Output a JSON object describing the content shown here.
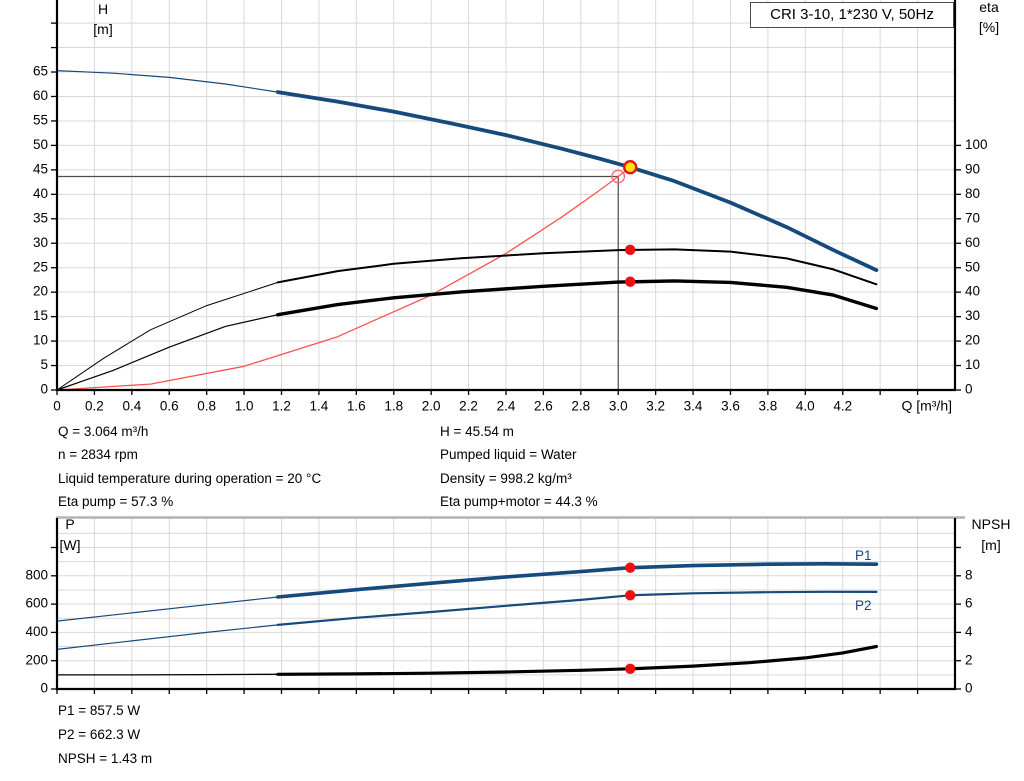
{
  "title_box": "CRI 3-10, 1*230 V, 50Hz",
  "annotations": {
    "left": [
      "Q = 3.064 m³/h",
      "n = 2834 rpm",
      "Liquid temperature during operation = 20 °C",
      "Eta pump = 57.3 %"
    ],
    "right": [
      "H = 45.54 m",
      "Pumped liquid = Water",
      "Density = 998.2 kg/m³",
      "Eta pump+motor = 44.3 %"
    ],
    "power": [
      "P1 = 857.5 W",
      "P2 = 662.3 W",
      "NPSH = 1.43 m"
    ]
  },
  "colors": {
    "curve_blue": "#174a7c",
    "curve_black": "#000000",
    "system_red": "#ff5252",
    "marker_red": "#f10e0e",
    "marker_yellow": "#ffe608",
    "marker_yellow_ring": "#e81313",
    "grid": "#d9d9d9",
    "axis": "#000000",
    "crosshair": "#4d4d4d",
    "panel_border": "#b3b3b3"
  },
  "chart_data": [
    {
      "type": "line",
      "title": "CRI 3-10, 1*230 V, 50Hz",
      "x_axis": {
        "label": "Q [m³/h]",
        "min": 0,
        "max": 4.8,
        "grid_step": 0.2,
        "grid_max": 4.6,
        "tick_step": 0.2,
        "tick_max": 4.6,
        "label_step": 0.2,
        "label_max": 4.2,
        "decimals": 1
      },
      "y_left": {
        "label": [
          "H",
          "[m]"
        ],
        "min": 0,
        "max": 80,
        "grid_step": 5,
        "grid_max": 75,
        "tick_step": 5,
        "tick_max": 75,
        "label_step": 5,
        "label_max": 65,
        "decimals": 0
      },
      "y_right": {
        "label": [
          "eta",
          "[%]"
        ],
        "min": 0,
        "max": 110,
        "tick_step": 10,
        "tick_max": 100,
        "label_step": 10,
        "label_max": 100,
        "decimals": 0
      },
      "crosshair": {
        "q": 3.0,
        "h": 43.65
      },
      "series": [
        {
          "name": "system-curve",
          "axis": "left",
          "color": "#ff5252",
          "width_thin": 1.3,
          "width": 1.3,
          "thin_until": 99,
          "points": [
            [
              0,
              0
            ],
            [
              0.5,
              1.2
            ],
            [
              1.0,
              4.85
            ],
            [
              1.5,
              10.9
            ],
            [
              2.0,
              19.4
            ],
            [
              2.4,
              27.9
            ],
            [
              2.7,
              35.4
            ],
            [
              2.9,
              40.8
            ],
            [
              3.0,
              43.65
            ],
            [
              3.064,
              45.5
            ]
          ]
        },
        {
          "name": "eta-pump-curve",
          "axis": "right",
          "color": "#000000",
          "width_thin": 1.0,
          "width": 2.0,
          "thin_until": 1.18,
          "points": [
            [
              0,
              0
            ],
            [
              0.25,
              13
            ],
            [
              0.5,
              24.6
            ],
            [
              0.8,
              34.5
            ],
            [
              1.18,
              44
            ],
            [
              1.5,
              48.6
            ],
            [
              1.8,
              51.6
            ],
            [
              2.16,
              53.9
            ],
            [
              2.6,
              55.9
            ],
            [
              3.0,
              57.2
            ],
            [
              3.3,
              57.5
            ],
            [
              3.6,
              56.6
            ],
            [
              3.9,
              53.8
            ],
            [
              4.15,
              49.3
            ],
            [
              4.38,
              43.2
            ]
          ]
        },
        {
          "name": "eta-pump-motor-curve",
          "axis": "right",
          "color": "#000000",
          "width_thin": 1.2,
          "width": 3.4,
          "thin_until": 1.18,
          "points": [
            [
              0,
              0
            ],
            [
              0.3,
              8
            ],
            [
              0.6,
              17.5
            ],
            [
              0.9,
              26
            ],
            [
              1.18,
              30.8
            ],
            [
              1.5,
              34.9
            ],
            [
              1.8,
              37.7
            ],
            [
              2.16,
              40.1
            ],
            [
              2.6,
              42.4
            ],
            [
              3.0,
              44.1
            ],
            [
              3.3,
              44.6
            ],
            [
              3.6,
              44
            ],
            [
              3.9,
              42
            ],
            [
              4.15,
              38.8
            ],
            [
              4.38,
              33.3
            ]
          ]
        },
        {
          "name": "head-curve",
          "axis": "left",
          "color": "#174a7c",
          "width_thin": 1.2,
          "width": 3.8,
          "thin_until": 1.18,
          "points": [
            [
              0,
              65.3
            ],
            [
              0.3,
              64.75
            ],
            [
              0.6,
              63.9
            ],
            [
              0.9,
              62.55
            ],
            [
              1.18,
              60.9
            ],
            [
              1.5,
              58.95
            ],
            [
              1.8,
              56.9
            ],
            [
              2.1,
              54.55
            ],
            [
              2.4,
              52.1
            ],
            [
              2.7,
              49.3
            ],
            [
              2.9,
              47.3
            ],
            [
              3.064,
              45.54
            ],
            [
              3.3,
              42.7
            ],
            [
              3.6,
              38.3
            ],
            [
              3.9,
              33.3
            ],
            [
              4.15,
              28.6
            ],
            [
              4.38,
              24.5
            ]
          ]
        }
      ],
      "markers": [
        {
          "name": "requested-duty-point",
          "type": "open-circle",
          "q": 3.0,
          "axis": "left",
          "v": 43.65
        },
        {
          "name": "operating-point",
          "type": "yellow-dot",
          "q": 3.064,
          "axis": "left",
          "v": 45.54
        },
        {
          "name": "eta-pump-point",
          "type": "red-dot",
          "q": 3.064,
          "axis": "right",
          "v": 57.3
        },
        {
          "name": "eta-pump-motor-point",
          "type": "red-dot",
          "q": 3.064,
          "axis": "right",
          "v": 44.3
        }
      ],
      "curve_labels": []
    },
    {
      "type": "line",
      "x_axis": {
        "label": "",
        "min": 0,
        "max": 4.8,
        "grid_step": 0.2,
        "grid_max": 4.6,
        "tick_step": 0.2,
        "tick_max": 4.6,
        "label_step": 0,
        "label_max": 0,
        "decimals": 1
      },
      "y_left": {
        "label": [
          "P",
          "[W]"
        ],
        "min": 0,
        "max": 1208,
        "grid_step": 100,
        "grid_max": 1100,
        "tick_step": 200,
        "tick_max": 1000,
        "label_step": 200,
        "label_max": 800,
        "decimals": 0
      },
      "y_right": {
        "label": [
          "NPSH",
          "[m]"
        ],
        "min": 0,
        "max": 12,
        "tick_step": 2,
        "tick_max": 10,
        "label_step": 2,
        "label_max": 8,
        "decimals": 0
      },
      "series": [
        {
          "name": "npsh-curve",
          "axis": "right",
          "color": "#000000",
          "width_thin": 1.3,
          "width": 3.2,
          "thin_until": 1.18,
          "points": [
            [
              0,
              1.0
            ],
            [
              0.4,
              1.0
            ],
            [
              0.8,
              1.02
            ],
            [
              1.18,
              1.04
            ],
            [
              1.6,
              1.07
            ],
            [
              2.0,
              1.12
            ],
            [
              2.4,
              1.2
            ],
            [
              2.8,
              1.32
            ],
            [
              3.064,
              1.43
            ],
            [
              3.4,
              1.62
            ],
            [
              3.7,
              1.86
            ],
            [
              4.0,
              2.2
            ],
            [
              4.2,
              2.55
            ],
            [
              4.38,
              3.0
            ]
          ]
        },
        {
          "name": "p2-curve",
          "axis": "left",
          "color": "#174a7c",
          "width_thin": 1.2,
          "width": 2.2,
          "thin_until": 1.18,
          "points": [
            [
              0,
              280
            ],
            [
              0.4,
              340
            ],
            [
              0.8,
              400
            ],
            [
              1.18,
              453
            ],
            [
              1.6,
              503
            ],
            [
              2.0,
              544
            ],
            [
              2.4,
              588
            ],
            [
              2.8,
              630
            ],
            [
              3.064,
              662.3
            ],
            [
              3.4,
              676
            ],
            [
              3.8,
              684
            ],
            [
              4.1,
              687
            ],
            [
              4.38,
              686
            ]
          ]
        },
        {
          "name": "p1-curve",
          "axis": "left",
          "color": "#174a7c",
          "width_thin": 1.2,
          "width": 3.6,
          "thin_until": 1.18,
          "points": [
            [
              0,
              480
            ],
            [
              0.4,
              538
            ],
            [
              0.8,
              596
            ],
            [
              1.18,
              650
            ],
            [
              1.6,
              702
            ],
            [
              2.0,
              748
            ],
            [
              2.4,
              792
            ],
            [
              2.8,
              830
            ],
            [
              3.064,
              857.5
            ],
            [
              3.4,
              872
            ],
            [
              3.8,
              882
            ],
            [
              4.1,
              885
            ],
            [
              4.38,
              882
            ]
          ]
        }
      ],
      "markers": [
        {
          "name": "p1-point",
          "type": "red-dot",
          "q": 3.064,
          "axis": "left",
          "v": 857.5
        },
        {
          "name": "p2-point",
          "type": "red-dot",
          "q": 3.064,
          "axis": "left",
          "v": 662.3
        },
        {
          "name": "npsh-point",
          "type": "red-dot",
          "q": 3.064,
          "axis": "right",
          "v": 1.43
        }
      ],
      "curve_labels": [
        {
          "text": "P1",
          "q": 4.31,
          "axis": "left",
          "v": 938,
          "color": "#174a7c"
        },
        {
          "text": "P2",
          "q": 4.31,
          "axis": "left",
          "v": 585,
          "color": "#174a7c"
        }
      ]
    }
  ]
}
